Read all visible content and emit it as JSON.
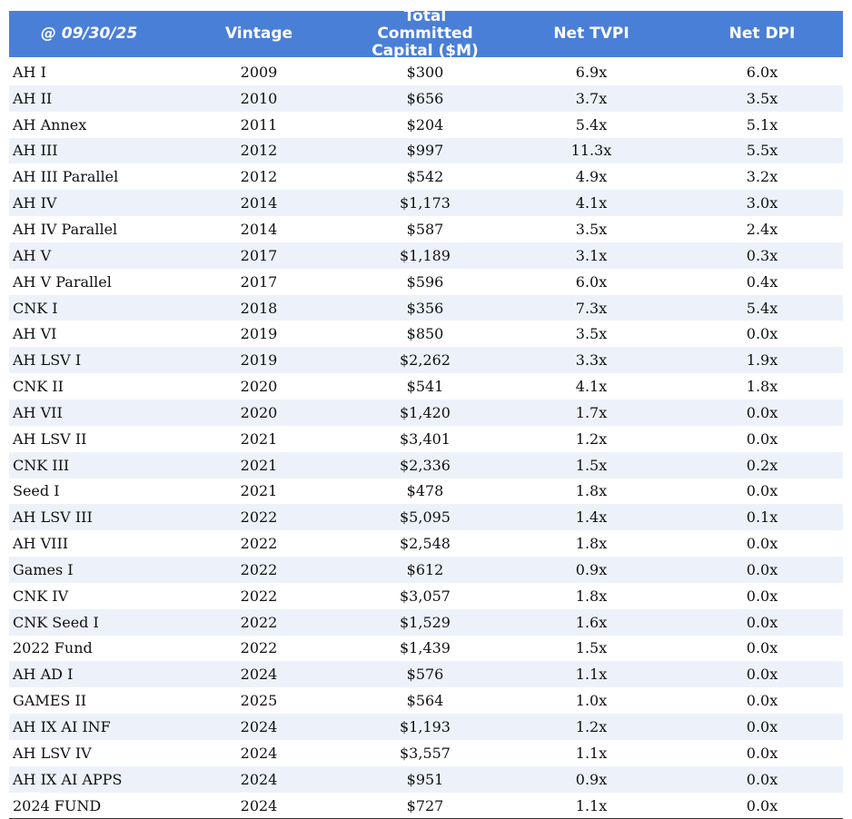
{
  "table": {
    "header": [
      "@ 09/30/25",
      "Vintage",
      "Total Committed Capital ($M)",
      "Net TVPI",
      "Net DPI"
    ],
    "rows": [
      [
        "AH I",
        "2009",
        "$300",
        "6.9x",
        "6.0x"
      ],
      [
        "AH II",
        "2010",
        "$656",
        "3.7x",
        "3.5x"
      ],
      [
        "AH Annex",
        "2011",
        "$204",
        "5.4x",
        "5.1x"
      ],
      [
        "AH III",
        "2012",
        "$997",
        "11.3x",
        "5.5x"
      ],
      [
        "AH III Parallel",
        "2012",
        "$542",
        "4.9x",
        "3.2x"
      ],
      [
        "AH IV",
        "2014",
        "$1,173",
        "4.1x",
        "3.0x"
      ],
      [
        "AH IV Parallel",
        "2014",
        "$587",
        "3.5x",
        "2.4x"
      ],
      [
        "AH V",
        "2017",
        "$1,189",
        "3.1x",
        "0.3x"
      ],
      [
        "AH V Parallel",
        "2017",
        "$596",
        "6.0x",
        "0.4x"
      ],
      [
        "CNK I",
        "2018",
        "$356",
        "7.3x",
        "5.4x"
      ],
      [
        "AH VI",
        "2019",
        "$850",
        "3.5x",
        "0.0x"
      ],
      [
        "AH LSV I",
        "2019",
        "$2,262",
        "3.3x",
        "1.9x"
      ],
      [
        "CNK II",
        "2020",
        "$541",
        "4.1x",
        "1.8x"
      ],
      [
        "AH VII",
        "2020",
        "$1,420",
        "1.7x",
        "0.0x"
      ],
      [
        "AH LSV II",
        "2021",
        "$3,401",
        "1.2x",
        "0.0x"
      ],
      [
        "CNK III",
        "2021",
        "$2,336",
        "1.5x",
        "0.2x"
      ],
      [
        "Seed I",
        "2021",
        "$478",
        "1.8x",
        "0.0x"
      ],
      [
        "AH LSV III",
        "2022",
        "$5,095",
        "1.4x",
        "0.1x"
      ],
      [
        "AH VIII",
        "2022",
        "$2,548",
        "1.8x",
        "0.0x"
      ],
      [
        "Games I",
        "2022",
        "$612",
        "0.9x",
        "0.0x"
      ],
      [
        "CNK IV",
        "2022",
        "$3,057",
        "1.8x",
        "0.0x"
      ],
      [
        "CNK Seed I",
        "2022",
        "$1,529",
        "1.6x",
        "0.0x"
      ],
      [
        "2022 Fund",
        "2022",
        "$1,439",
        "1.5x",
        "0.0x"
      ],
      [
        "AH AD I",
        "2024",
        "$576",
        "1.1x",
        "0.0x"
      ],
      [
        "GAMES II",
        "2025",
        "$564",
        "1.0x",
        "0.0x"
      ],
      [
        "AH IX AI INF",
        "2024",
        "$1,193",
        "1.2x",
        "0.0x"
      ],
      [
        "AH LSV IV",
        "2024",
        "$3,557",
        "1.1x",
        "0.0x"
      ],
      [
        "AH IX AI APPS",
        "2024",
        "$951",
        "0.9x",
        "0.0x"
      ],
      [
        "2024 FUND",
        "2024",
        "$727",
        "1.1x",
        "0.0x"
      ]
    ]
  }
}
